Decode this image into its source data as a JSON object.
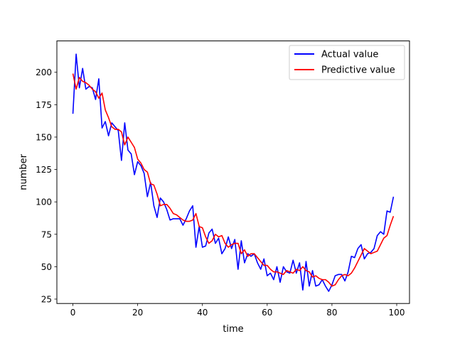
{
  "chart_data": {
    "type": "line",
    "title": "",
    "xlabel": "time",
    "ylabel": "number",
    "xlim": [
      -4.95,
      103.95
    ],
    "ylim": [
      21.6,
      224.2
    ],
    "xticks": [
      0,
      20,
      40,
      60,
      80,
      100
    ],
    "yticks": [
      25,
      50,
      75,
      100,
      125,
      150,
      175,
      200
    ],
    "grid": false,
    "legend_position": "upper right",
    "x": [
      0,
      1,
      2,
      3,
      4,
      5,
      6,
      7,
      8,
      9,
      10,
      11,
      12,
      13,
      14,
      15,
      16,
      17,
      18,
      19,
      20,
      21,
      22,
      23,
      24,
      25,
      26,
      27,
      28,
      29,
      30,
      31,
      32,
      33,
      34,
      35,
      36,
      37,
      38,
      39,
      40,
      41,
      42,
      43,
      44,
      45,
      46,
      47,
      48,
      49,
      50,
      51,
      52,
      53,
      54,
      55,
      56,
      57,
      58,
      59,
      60,
      61,
      62,
      63,
      64,
      65,
      66,
      67,
      68,
      69,
      70,
      71,
      72,
      73,
      74,
      75,
      76,
      77,
      78,
      79,
      80,
      81,
      82,
      83,
      84,
      85,
      86,
      87,
      88,
      89,
      90,
      91,
      92,
      93,
      94,
      95,
      96,
      97,
      98,
      99
    ],
    "series": [
      {
        "name": "Actual value",
        "color": "#0000ff",
        "values": [
          168,
          214,
          188,
          203,
          187,
          189,
          188,
          179,
          195,
          157,
          162,
          151,
          161,
          158,
          155,
          132,
          161,
          140,
          137,
          121,
          131,
          128,
          122,
          104,
          115,
          97,
          88,
          103,
          100,
          94,
          86,
          87,
          87,
          87,
          82,
          87,
          93,
          97,
          65,
          81,
          65,
          66,
          76,
          79,
          68,
          72,
          60,
          64,
          73,
          64,
          71,
          48,
          70,
          53,
          60,
          58,
          60,
          53,
          48,
          56,
          43,
          45,
          40,
          50,
          38,
          50,
          46,
          45,
          55,
          45,
          53,
          32,
          54,
          35,
          47,
          35,
          36,
          40,
          35,
          31,
          36,
          43,
          44,
          44,
          39,
          46,
          58,
          57,
          64,
          67,
          56,
          60,
          61,
          64,
          74,
          77,
          75,
          93,
          92,
          104
        ]
      },
      {
        "name": "Predictive value",
        "color": "#ff0000",
        "values": [
          199,
          187,
          196,
          193,
          192,
          190,
          187,
          185,
          180,
          184,
          171,
          165,
          158,
          156,
          156,
          154,
          144,
          150,
          146,
          142,
          133,
          130,
          125,
          123,
          114,
          113,
          106,
          97,
          98,
          98,
          95,
          91,
          90,
          88,
          86,
          85,
          85,
          86,
          91,
          81,
          80,
          73,
          68,
          70,
          75,
          73,
          74,
          68,
          65,
          67,
          68,
          68,
          60,
          63,
          58,
          60,
          60,
          57,
          54,
          51,
          51,
          48,
          46,
          46,
          45,
          44,
          47,
          46,
          45,
          48,
          47,
          50,
          47,
          46,
          42,
          43,
          41,
          40,
          40,
          38,
          35,
          36,
          40,
          43,
          44,
          43,
          45,
          49,
          54,
          59,
          64,
          62,
          60,
          61,
          62,
          67,
          72,
          74,
          82,
          89
        ]
      }
    ]
  }
}
